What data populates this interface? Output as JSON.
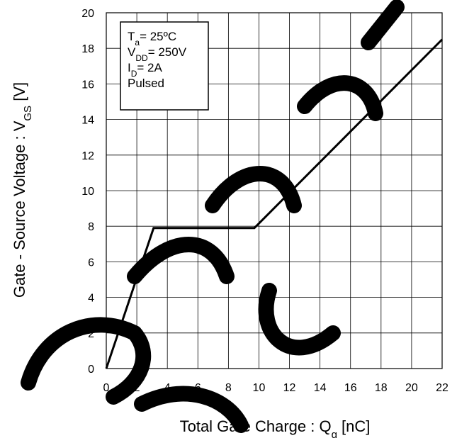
{
  "chart_data": {
    "type": "line",
    "xlabel": {
      "main": "Total Gate Charge : Q",
      "sub": "g",
      "unit": " [nC]"
    },
    "ylabel": {
      "main": "Gate - Source Voltage : V",
      "sub": "GS",
      "unit": " [V]"
    },
    "xlim": [
      0,
      22
    ],
    "ylim": [
      0,
      20
    ],
    "x_ticks": [
      0,
      2,
      4,
      6,
      8,
      10,
      12,
      14,
      16,
      18,
      20,
      22
    ],
    "y_ticks": [
      0,
      2,
      4,
      6,
      8,
      10,
      12,
      14,
      16,
      18,
      20
    ],
    "grid": true,
    "series": [
      {
        "x": [
          0,
          3.1,
          9.7,
          22.0
        ],
        "y": [
          0,
          7.9,
          7.9,
          18.5
        ]
      }
    ],
    "conditions": [
      {
        "main": "T",
        "sub": "a",
        "rest": "= 25ºC"
      },
      {
        "main": "V",
        "sub": "DD",
        "rest": "= 250V"
      },
      {
        "main": "I",
        "sub": "D",
        "rest": "= 2A"
      },
      {
        "main": "Pulsed",
        "sub": "",
        "rest": ""
      }
    ],
    "legend_position": "top-left",
    "line_color": "#000000"
  }
}
